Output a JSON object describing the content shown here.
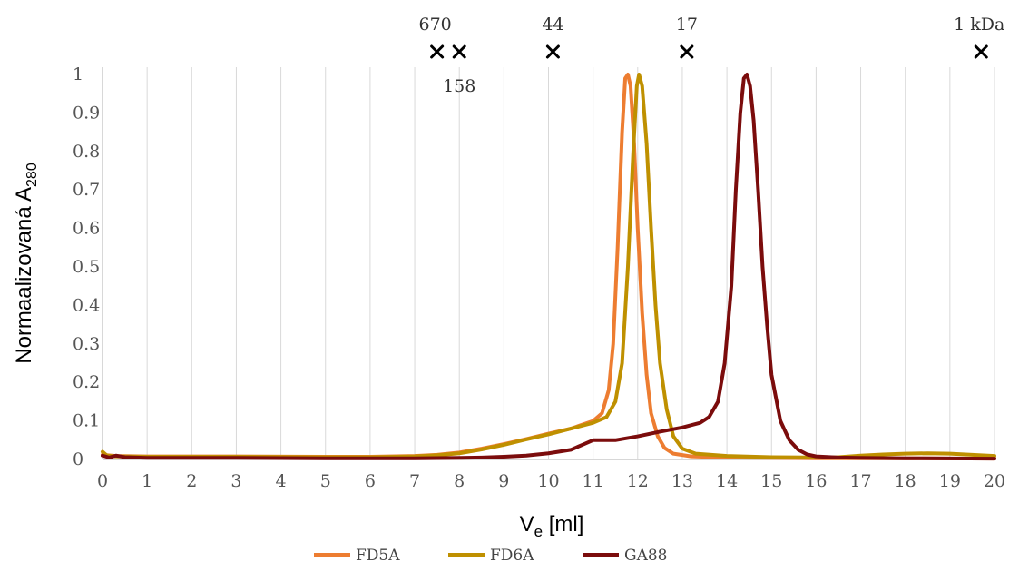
{
  "chart_data": {
    "type": "line",
    "xlabel": {
      "base": "V",
      "sub": "e",
      "rest": " [ml]"
    },
    "ylabel": {
      "base": "Normaalizovaná A",
      "sub": "280"
    },
    "xlim": [
      0,
      20
    ],
    "ylim": [
      0,
      1
    ],
    "x_ticks": [
      "0",
      "1",
      "2",
      "3",
      "4",
      "5",
      "6",
      "7",
      "8",
      "9",
      "10",
      "11",
      "12",
      "13",
      "14",
      "15",
      "16",
      "17",
      "18",
      "19",
      "20"
    ],
    "y_ticks": [
      "0",
      "0.1",
      "0.2",
      "0.3",
      "0.4",
      "0.5",
      "0.6",
      "0.7",
      "0.8",
      "0.9",
      "1"
    ],
    "grid": {
      "vertical": true,
      "horizontal": false
    },
    "legend_position": "bottom",
    "markers": [
      {
        "x": 7.5,
        "label": "670",
        "label_position": "above"
      },
      {
        "x": 8.0,
        "label": "158",
        "label_position": "below"
      },
      {
        "x": 10.1,
        "label": "44",
        "label_position": "above"
      },
      {
        "x": 13.1,
        "label": "17",
        "label_position": "above"
      },
      {
        "x": 19.7,
        "label": "1 kDa",
        "label_position": "above"
      }
    ],
    "series": [
      {
        "name": "FD5A",
        "color": "#ED7D31",
        "points": [
          [
            0,
            0.012
          ],
          [
            0.3,
            0.009
          ],
          [
            1,
            0.008
          ],
          [
            3,
            0.008
          ],
          [
            5,
            0.007
          ],
          [
            6,
            0.007
          ],
          [
            7,
            0.009
          ],
          [
            7.5,
            0.012
          ],
          [
            8,
            0.018
          ],
          [
            8.5,
            0.028
          ],
          [
            9,
            0.04
          ],
          [
            9.5,
            0.053
          ],
          [
            10,
            0.067
          ],
          [
            10.5,
            0.08
          ],
          [
            11,
            0.1
          ],
          [
            11.2,
            0.12
          ],
          [
            11.35,
            0.18
          ],
          [
            11.45,
            0.3
          ],
          [
            11.55,
            0.55
          ],
          [
            11.65,
            0.85
          ],
          [
            11.72,
            0.99
          ],
          [
            11.78,
            1.0
          ],
          [
            11.84,
            0.97
          ],
          [
            11.92,
            0.82
          ],
          [
            12.0,
            0.6
          ],
          [
            12.1,
            0.38
          ],
          [
            12.2,
            0.22
          ],
          [
            12.3,
            0.12
          ],
          [
            12.45,
            0.06
          ],
          [
            12.6,
            0.03
          ],
          [
            12.8,
            0.015
          ],
          [
            13.2,
            0.008
          ],
          [
            14,
            0.005
          ],
          [
            16,
            0.003
          ],
          [
            18,
            0.003
          ],
          [
            20,
            0.002
          ]
        ]
      },
      {
        "name": "FD6A",
        "color": "#BF9000",
        "points": [
          [
            0,
            0.02
          ],
          [
            0.1,
            0.01
          ],
          [
            0.3,
            0.008
          ],
          [
            1,
            0.007
          ],
          [
            3,
            0.007
          ],
          [
            5,
            0.006
          ],
          [
            6,
            0.006
          ],
          [
            7,
            0.008
          ],
          [
            7.5,
            0.011
          ],
          [
            8,
            0.016
          ],
          [
            8.5,
            0.026
          ],
          [
            9,
            0.038
          ],
          [
            9.5,
            0.052
          ],
          [
            10,
            0.065
          ],
          [
            10.5,
            0.08
          ],
          [
            11,
            0.095
          ],
          [
            11.3,
            0.11
          ],
          [
            11.5,
            0.15
          ],
          [
            11.65,
            0.25
          ],
          [
            11.78,
            0.5
          ],
          [
            11.9,
            0.8
          ],
          [
            11.98,
            0.97
          ],
          [
            12.03,
            1.0
          ],
          [
            12.1,
            0.97
          ],
          [
            12.2,
            0.82
          ],
          [
            12.3,
            0.6
          ],
          [
            12.4,
            0.4
          ],
          [
            12.5,
            0.25
          ],
          [
            12.65,
            0.13
          ],
          [
            12.8,
            0.06
          ],
          [
            13.0,
            0.028
          ],
          [
            13.3,
            0.015
          ],
          [
            14,
            0.009
          ],
          [
            15,
            0.006
          ],
          [
            16,
            0.005
          ],
          [
            16.5,
            0.006
          ],
          [
            17,
            0.01
          ],
          [
            17.5,
            0.013
          ],
          [
            18,
            0.015
          ],
          [
            18.5,
            0.016
          ],
          [
            19,
            0.015
          ],
          [
            19.5,
            0.012
          ],
          [
            20,
            0.009
          ]
        ]
      },
      {
        "name": "GA88",
        "color": "#7B0C0C",
        "points": [
          [
            0,
            0.01
          ],
          [
            0.15,
            0.005
          ],
          [
            0.3,
            0.01
          ],
          [
            0.5,
            0.006
          ],
          [
            1,
            0.004
          ],
          [
            3,
            0.004
          ],
          [
            5,
            0.003
          ],
          [
            7,
            0.003
          ],
          [
            8,
            0.004
          ],
          [
            8.5,
            0.005
          ],
          [
            9,
            0.007
          ],
          [
            9.5,
            0.01
          ],
          [
            10,
            0.016
          ],
          [
            10.5,
            0.025
          ],
          [
            10.8,
            0.04
          ],
          [
            11,
            0.05
          ],
          [
            11.5,
            0.05
          ],
          [
            12,
            0.06
          ],
          [
            12.5,
            0.072
          ],
          [
            13,
            0.083
          ],
          [
            13.4,
            0.095
          ],
          [
            13.6,
            0.11
          ],
          [
            13.8,
            0.15
          ],
          [
            13.95,
            0.25
          ],
          [
            14.1,
            0.45
          ],
          [
            14.2,
            0.7
          ],
          [
            14.3,
            0.9
          ],
          [
            14.38,
            0.99
          ],
          [
            14.45,
            1.0
          ],
          [
            14.52,
            0.97
          ],
          [
            14.6,
            0.88
          ],
          [
            14.7,
            0.7
          ],
          [
            14.8,
            0.5
          ],
          [
            14.9,
            0.35
          ],
          [
            15.0,
            0.22
          ],
          [
            15.2,
            0.1
          ],
          [
            15.4,
            0.05
          ],
          [
            15.6,
            0.025
          ],
          [
            15.8,
            0.013
          ],
          [
            16,
            0.008
          ],
          [
            16.5,
            0.005
          ],
          [
            17,
            0.004
          ],
          [
            18,
            0.003
          ],
          [
            20,
            0.002
          ]
        ]
      }
    ]
  }
}
